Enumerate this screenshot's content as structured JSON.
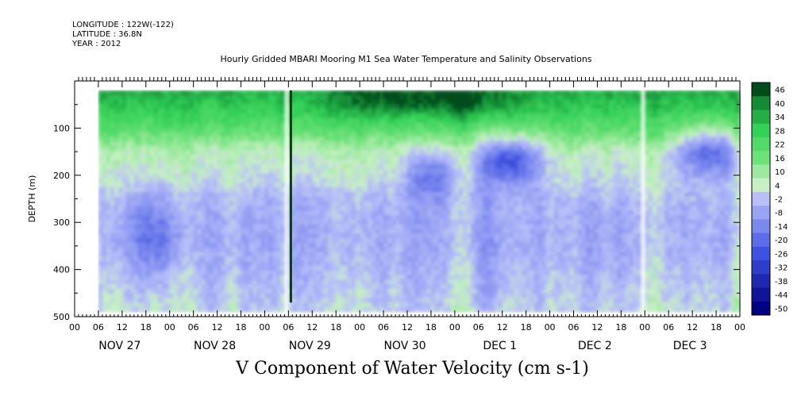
{
  "header": {
    "longitude": "LONGITUDE : 122W(-122)",
    "latitude": "LATITUDE : 36.8N",
    "year": "YEAR : 2012",
    "title": "Hourly Gridded MBARI Mooring M1 Sea Water Temperature and Salinity Observations"
  },
  "footer": {
    "label": "V Component of Water Velocity (cm s-1)"
  },
  "chart_data": {
    "type": "heatmap",
    "title": "Hourly Gridded MBARI Mooring M1 Sea Water Temperature and Salinity Observations",
    "xlabel": "",
    "ylabel": "DEPTH (m)",
    "colorbar_label": "V Component of Water Velocity (cm s-1)",
    "x_range_hours": [
      0,
      168
    ],
    "ylim": [
      500,
      20
    ],
    "y_ticks": [
      100,
      200,
      300,
      400,
      500
    ],
    "y_tick_labels": [
      "100",
      "200",
      "300",
      "400",
      "500"
    ],
    "x_hour_labels": [
      "00",
      "06",
      "12",
      "18",
      "00",
      "06",
      "12",
      "18",
      "00",
      "06",
      "12",
      "18",
      "00",
      "06",
      "12",
      "18",
      "00",
      "06",
      "12",
      "18",
      "00",
      "06",
      "12",
      "18",
      "00",
      "06",
      "12",
      "18",
      "00"
    ],
    "day_labels": [
      "NOV 27",
      "NOV 28",
      "NOV 29",
      "NOV 30",
      "DEC  1",
      "DEC  2",
      "DEC  3"
    ],
    "colorbar_levels": [
      -50,
      -44,
      -38,
      -32,
      -26,
      -20,
      -14,
      -8,
      -2,
      4,
      10,
      16,
      22,
      28,
      34,
      40,
      46
    ],
    "colorbar_labels": [
      "46",
      "40",
      "34",
      "28",
      "22",
      "16",
      "10",
      "4",
      "-2",
      "-8",
      "-14",
      "-20",
      "-26",
      "-32",
      "-38",
      "-44",
      "-50"
    ],
    "colors": {
      "strong_negative": "#000080",
      "negative": "#9aa4f4",
      "near_zero": "#c9f0c4",
      "positive": "#33d158",
      "strong_positive": "#004d1a"
    },
    "data_gaps_hours": [
      [
        0,
        6.5
      ],
      [
        53,
        54
      ],
      [
        143,
        144.5
      ]
    ],
    "approx_profile": {
      "depth_m": [
        20,
        50,
        100,
        150,
        200,
        250,
        300,
        350,
        400,
        450,
        490
      ],
      "typical_value": [
        34,
        30,
        20,
        6,
        2,
        -4,
        -6,
        -6,
        -4,
        -2,
        0
      ]
    }
  }
}
